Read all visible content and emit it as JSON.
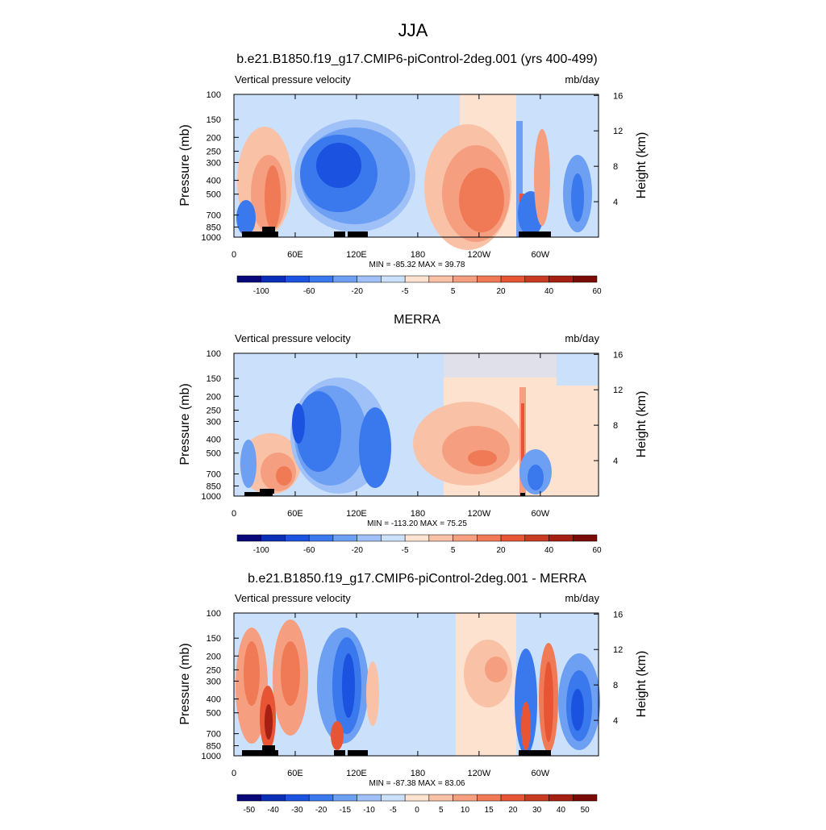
{
  "figure_title": "JJA",
  "palettes": {
    "abs": [
      "#08087a",
      "#0a2fb6",
      "#1c52e0",
      "#3a78ee",
      "#6d9ff3",
      "#9fc1f7",
      "#cbe0fb",
      "#fde2cf",
      "#f9c1a6",
      "#f59f80",
      "#ef7a55",
      "#e75535",
      "#c93a22",
      "#a51f12",
      "#7a0a06"
    ],
    "diff": [
      "#08087a",
      "#0a2fb6",
      "#1c52e0",
      "#3a78ee",
      "#6d9ff3",
      "#9fc1f7",
      "#cbe0fb",
      "#fde2cf",
      "#f9c1a6",
      "#f59f80",
      "#ef7a55",
      "#e75535",
      "#c93a22",
      "#a51f12",
      "#7a0a06"
    ]
  },
  "chart_data": [
    {
      "type": "heatmap",
      "title": "b.e21.B1850.f19_g17.CMIP6-piControl-2deg.001 (yrs 400-499)",
      "left_label": "Vertical pressure velocity",
      "right_label": "mb/day",
      "ylabel": "Pressure (mb)",
      "ylabel_right": "Height (km)",
      "x_ticks": [
        "0",
        "60E",
        "120E",
        "180",
        "120W",
        "60W"
      ],
      "y_ticks": [
        "100",
        "150",
        "200",
        "250",
        "300",
        "400",
        "500",
        "700",
        "850",
        "1000"
      ],
      "y_right_ticks": [
        "16",
        "12",
        "8",
        "4"
      ],
      "stats": "MIN = -85.32  MAX =  39.78",
      "colorbar_labels": [
        "-100",
        "-60",
        "-20",
        "-5",
        "5",
        "20",
        "40",
        "60"
      ],
      "palette": "abs",
      "grid": false
    },
    {
      "type": "heatmap",
      "title": "MERRA",
      "left_label": "Vertical pressure velocity",
      "right_label": "mb/day",
      "ylabel": "Pressure (mb)",
      "ylabel_right": "Height (km)",
      "x_ticks": [
        "0",
        "60E",
        "120E",
        "180",
        "120W",
        "60W"
      ],
      "y_ticks": [
        "100",
        "150",
        "200",
        "250",
        "300",
        "400",
        "500",
        "700",
        "850",
        "1000"
      ],
      "y_right_ticks": [
        "16",
        "12",
        "8",
        "4"
      ],
      "stats": "MIN = -113.20  MAX =  75.25",
      "colorbar_labels": [
        "-100",
        "-60",
        "-20",
        "-5",
        "5",
        "20",
        "40",
        "60"
      ],
      "palette": "abs",
      "grid": false
    },
    {
      "type": "heatmap",
      "title": "b.e21.B1850.f19_g17.CMIP6-piControl-2deg.001 - MERRA",
      "left_label": "Vertical pressure velocity",
      "right_label": "mb/day",
      "ylabel": "Pressure (mb)",
      "ylabel_right": "Height (km)",
      "x_ticks": [
        "0",
        "60E",
        "120E",
        "180",
        "120W",
        "60W"
      ],
      "y_ticks": [
        "100",
        "150",
        "200",
        "250",
        "300",
        "400",
        "500",
        "700",
        "850",
        "1000"
      ],
      "y_right_ticks": [
        "16",
        "12",
        "8",
        "4"
      ],
      "stats": "MIN = -87.38  MAX =  83.06",
      "colorbar_labels": [
        "-50",
        "-40",
        "-30",
        "-20",
        "-15",
        "-10",
        "-5",
        "0",
        "5",
        "10",
        "15",
        "20",
        "30",
        "40",
        "50"
      ],
      "palette": "diff",
      "grid": false
    }
  ]
}
